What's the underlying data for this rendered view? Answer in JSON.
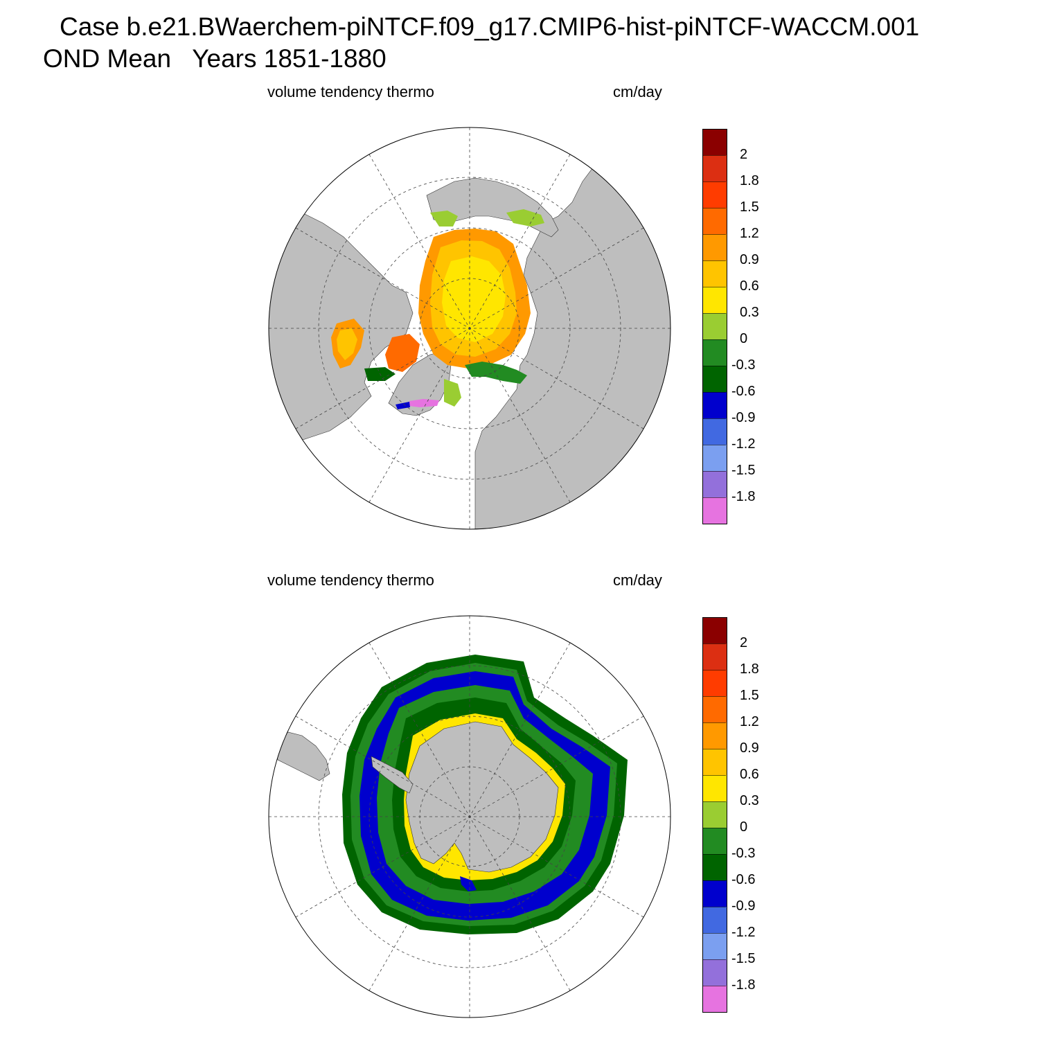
{
  "title": {
    "line1": "Case b.e21.BWaerchem-piNTCF.f09_g17.CMIP6-hist-piNTCF-WACCM.001",
    "line2": "OND Mean   Years 1851-1880"
  },
  "panels": [
    {
      "id": "north",
      "hemisphere": "Northern",
      "left_label": "volume tendency thermo",
      "right_label": "cm/day"
    },
    {
      "id": "south",
      "hemisphere": "Southern",
      "left_label": "volume tendency thermo",
      "right_label": "cm/day"
    }
  ],
  "colorbar": {
    "units": "cm/day",
    "labels": [
      "2",
      "1.8",
      "1.5",
      "1.2",
      "0.9",
      "0.6",
      "0.3",
      "0",
      "-0.3",
      "-0.6",
      "-0.9",
      "-1.2",
      "-1.5",
      "-1.8"
    ],
    "colors": [
      "#8b0000",
      "#dc2f12",
      "#ff3c00",
      "#ff6a00",
      "#ff9900",
      "#ffc400",
      "#ffe600",
      "#9acd32",
      "#228b22",
      "#006400",
      "#0000cd",
      "#4169e1",
      "#7b9ff0",
      "#9370db",
      "#e673e0"
    ]
  },
  "map_style": {
    "land_color": "#bebebe",
    "ocean_color": "#ffffff",
    "grid_style": "dashed"
  }
}
